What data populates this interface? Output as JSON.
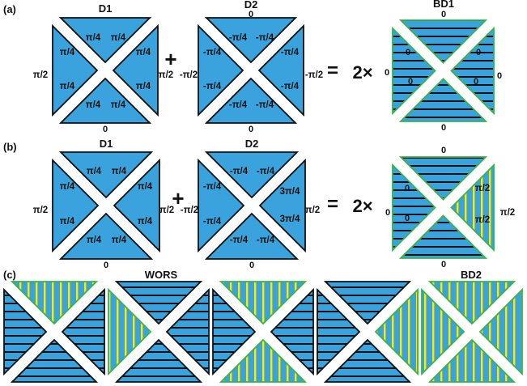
{
  "colors": {
    "plate_fill": "#3aa3dd",
    "horizontal_stripe": "#111111",
    "vertical_stripe": "#f2ea1a",
    "plate_border": "#111111",
    "striped_border": "#37b24d",
    "highlight_text": "#d91c24"
  },
  "panel_a": {
    "label": "(a)",
    "d1": {
      "title": "D1",
      "top": [
        "π/4",
        "π/4"
      ],
      "right": [
        "π/4",
        "π/4"
      ],
      "bottom": [
        "π/4",
        "π/4"
      ],
      "left": [
        "π/4",
        "π/4"
      ],
      "outer_left": "π/2",
      "outer_right": "π/2",
      "outer_bottom": "0"
    },
    "plus": "+",
    "d2": {
      "title": "D2",
      "outer_top": "0",
      "top": [
        "-π/4",
        "-π/4"
      ],
      "right": [
        "-π/4",
        "-π/4"
      ],
      "bottom": [
        "-π/4",
        "-π/4"
      ],
      "left": [
        "-π/4",
        "-π/4"
      ],
      "outer_left": "-π/2",
      "outer_right": "-π/2",
      "outer_bottom": "0"
    },
    "equals": "=",
    "factor": "2×",
    "bd1": {
      "title": "BD1",
      "outer_top": "0",
      "left": [
        "0",
        "0"
      ],
      "right": [
        "0",
        "0"
      ],
      "outer_left": "0",
      "outer_right": "0",
      "outer_bottom": "0"
    }
  },
  "panel_b": {
    "label": "(b)",
    "d1": {
      "title": "D1",
      "top": [
        "π/4",
        "π/4"
      ],
      "right": [
        "π/4",
        "π/4"
      ],
      "bottom": [
        "π/4",
        "π/4"
      ],
      "left": [
        "π/4",
        "π/4"
      ],
      "outer_left": "π/2",
      "outer_right": "π/2",
      "outer_bottom": "0"
    },
    "plus": "+",
    "d2": {
      "title": "D2",
      "top": [
        "-π/4",
        "-π/4"
      ],
      "right": [
        "3π/4",
        "3π/4"
      ],
      "bottom": [
        "-π/4",
        "-π/4"
      ],
      "left": [
        "-π/4",
        "-π/4"
      ],
      "outer_left": "-π/2",
      "outer_right": "π/2",
      "outer_bottom": "0"
    },
    "equals": "=",
    "factor": "2×",
    "bd": {
      "outer_top": "0",
      "left": [
        "0",
        "0"
      ],
      "right": [
        "π/2",
        "π/2"
      ],
      "outer_left": "0",
      "outer_right": "π/2",
      "outer_bottom": "0"
    }
  },
  "panel_c": {
    "label": "(c)",
    "wors_label": "WORS",
    "bd2_label": "BD2"
  }
}
